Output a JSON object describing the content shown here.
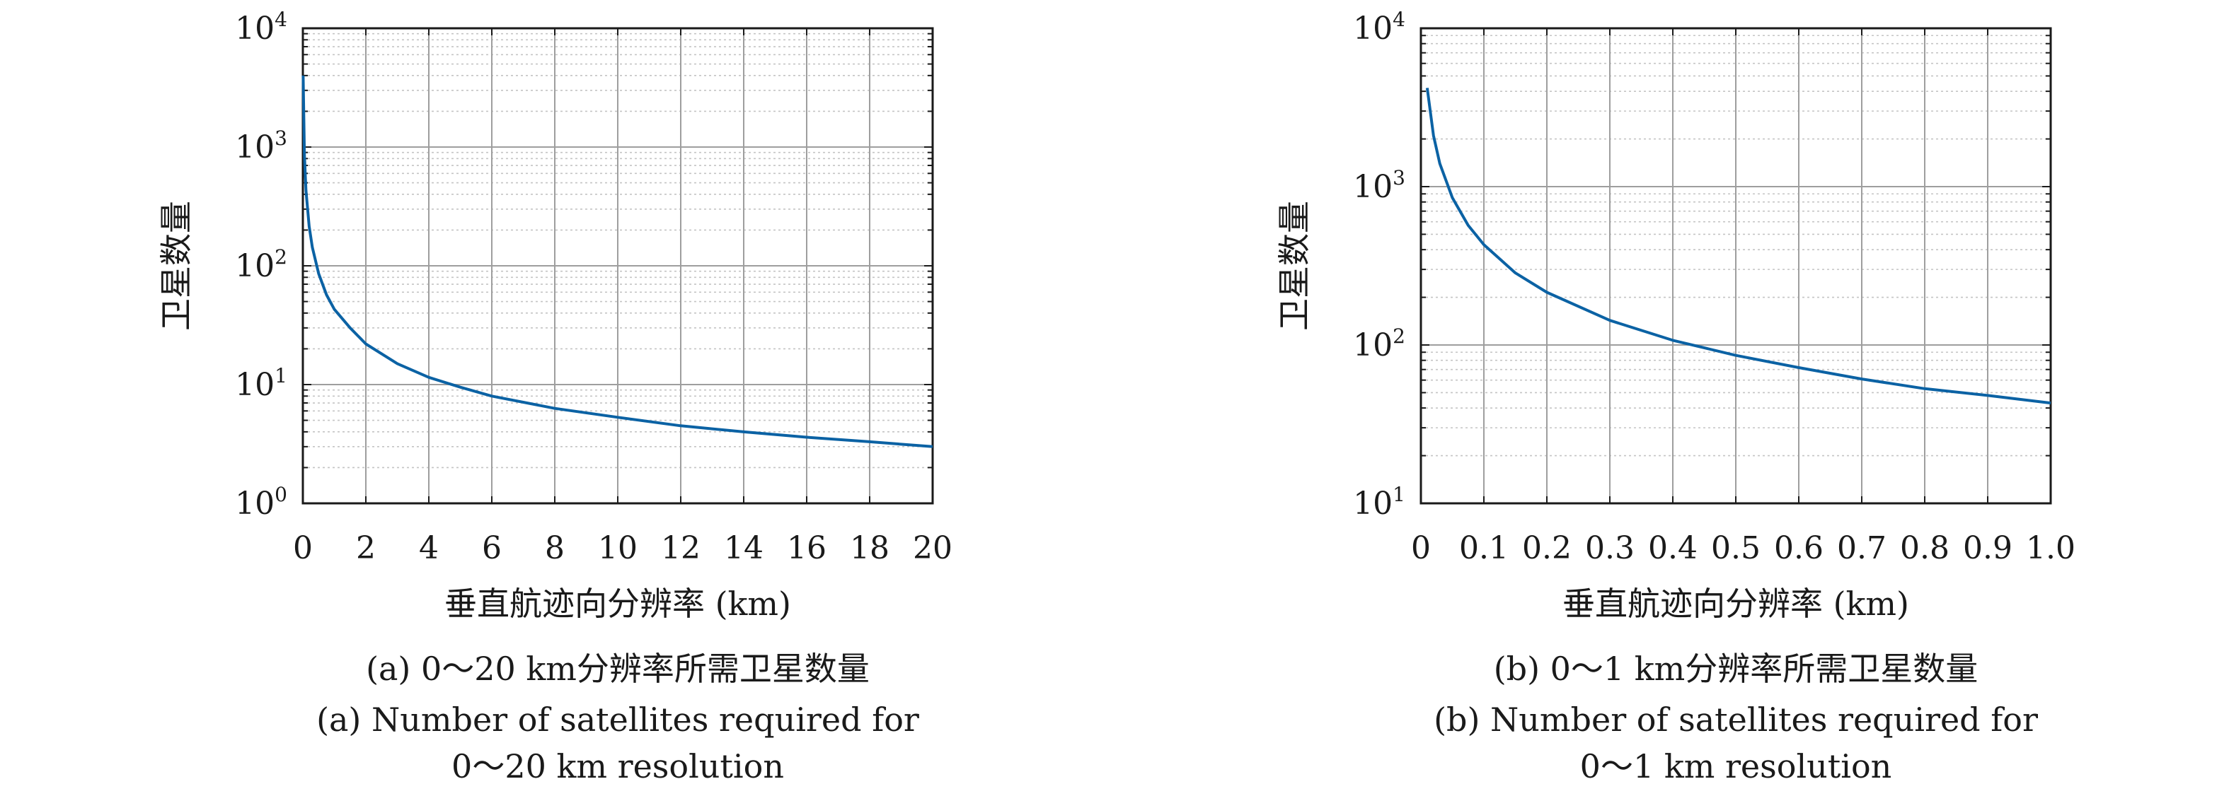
{
  "chart_data": [
    {
      "type": "line",
      "xlabel": "垂直航迹向分辨率 (km)",
      "ylabel": "卫星数量",
      "xlim": [
        0,
        20
      ],
      "ylim": [
        1,
        10000
      ],
      "yscale": "log",
      "grid": true,
      "x_ticks": [
        0,
        2,
        4,
        6,
        8,
        10,
        12,
        14,
        16,
        18,
        20
      ],
      "y_ticks": [
        {
          "base": "10",
          "exp": "0"
        },
        {
          "base": "10",
          "exp": "1"
        },
        {
          "base": "10",
          "exp": "2"
        },
        {
          "base": "10",
          "exp": "3"
        },
        {
          "base": "10",
          "exp": "4"
        }
      ],
      "series": [
        {
          "color": "#0b62a4",
          "x": [
            0.01,
            0.05,
            0.1,
            0.2,
            0.3,
            0.5,
            0.75,
            1,
            1.5,
            2,
            3,
            4,
            5,
            6,
            8,
            10,
            12,
            14,
            16,
            18,
            20
          ],
          "y": [
            4000,
            860,
            430,
            215,
            143,
            86,
            57,
            43,
            30,
            22,
            15,
            11.5,
            9.5,
            8,
            6.3,
            5.3,
            4.5,
            4.0,
            3.6,
            3.3,
            3.0
          ]
        }
      ],
      "caption_lines": [
        "(a) 0～20 km分辨率所需卫星数量",
        "(a) Number of satellites required for",
        "0～20 km resolution"
      ]
    },
    {
      "type": "line",
      "xlabel": "垂直航迹向分辨率 (km)",
      "ylabel": "卫星数量",
      "xlim": [
        0,
        1.0
      ],
      "ylim": [
        10,
        10000
      ],
      "yscale": "log",
      "grid": true,
      "x_ticks": [
        "0",
        "0.1",
        "0.2",
        "0.3",
        "0.4",
        "0.5",
        "0.6",
        "0.7",
        "0.8",
        "0.9",
        "1.0"
      ],
      "y_ticks": [
        {
          "base": "10",
          "exp": "1"
        },
        {
          "base": "10",
          "exp": "2"
        },
        {
          "base": "10",
          "exp": "3"
        },
        {
          "base": "10",
          "exp": "4"
        }
      ],
      "series": [
        {
          "color": "#0b62a4",
          "x": [
            0.01,
            0.02,
            0.03,
            0.05,
            0.075,
            0.1,
            0.15,
            0.2,
            0.3,
            0.4,
            0.5,
            0.6,
            0.7,
            0.8,
            0.9,
            1.0
          ],
          "y": [
            4200,
            2100,
            1400,
            850,
            570,
            430,
            285,
            215,
            143,
            107,
            86,
            72,
            61,
            53,
            48,
            43
          ]
        }
      ],
      "caption_lines": [
        "(b) 0～1 km分辨率所需卫星数量",
        "(b) Number of satellites required for",
        "0～1 km resolution"
      ]
    }
  ]
}
